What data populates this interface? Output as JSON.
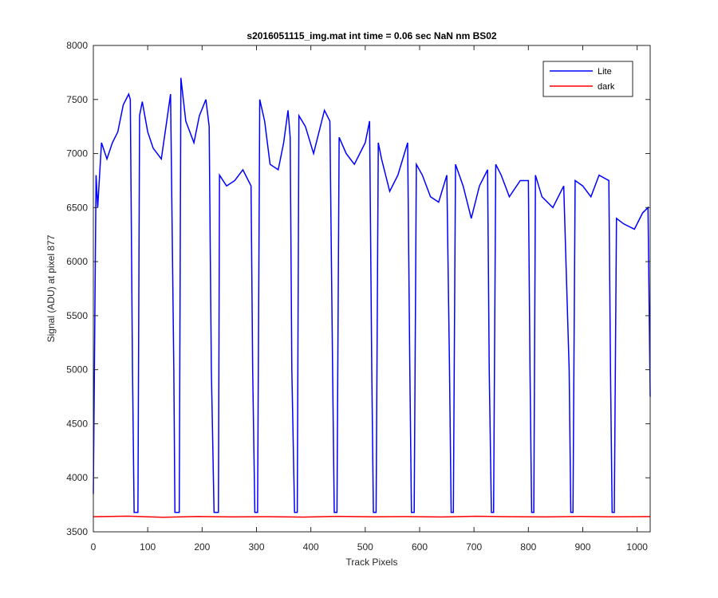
{
  "chart_data": {
    "type": "line",
    "title": "s2016051115_img.mat int time = 0.06 sec  NaN nm BS02",
    "xlabel": "Track Pixels",
    "ylabel": "Signal (ADU) at pixel 877",
    "xlim": [
      0,
      1024
    ],
    "ylim": [
      3500,
      8000
    ],
    "xticks": [
      0,
      100,
      200,
      300,
      400,
      500,
      600,
      700,
      800,
      900,
      1000
    ],
    "yticks": [
      3500,
      4000,
      4500,
      5000,
      5500,
      6000,
      6500,
      7000,
      7500,
      8000
    ],
    "legend": "upper right",
    "series": [
      {
        "name": "Lite",
        "color": "#0000ff",
        "x": [
          0,
          5,
          8,
          15,
          25,
          35,
          45,
          55,
          65,
          68,
          72,
          75,
          82,
          85,
          90,
          100,
          110,
          125,
          135,
          142,
          148,
          150,
          158,
          161,
          170,
          185,
          195,
          207,
          213,
          217,
          222,
          230,
          232,
          245,
          260,
          275,
          290,
          293,
          297,
          302,
          306,
          315,
          325,
          340,
          350,
          358,
          362,
          365,
          370,
          375,
          378,
          390,
          405,
          425,
          435,
          440,
          443,
          448,
          452,
          465,
          480,
          500,
          508,
          512,
          515,
          520,
          524,
          530,
          545,
          560,
          578,
          582,
          585,
          590,
          594,
          605,
          620,
          635,
          650,
          655,
          658,
          662,
          666,
          680,
          695,
          710,
          725,
          728,
          732,
          736,
          740,
          750,
          765,
          785,
          800,
          803,
          806,
          810,
          813,
          825,
          845,
          865,
          875,
          878,
          882,
          886,
          900,
          915,
          930,
          948,
          951,
          954,
          958,
          962,
          975,
          995,
          1010,
          1020,
          1024
        ],
        "values": [
          3850,
          6800,
          6500,
          7100,
          6950,
          7100,
          7200,
          7450,
          7550,
          7500,
          5000,
          3680,
          3680,
          7350,
          7480,
          7200,
          7050,
          6950,
          7300,
          7550,
          5000,
          3680,
          3680,
          7700,
          7300,
          7100,
          7350,
          7500,
          7250,
          5000,
          3680,
          3680,
          6800,
          6700,
          6750,
          6850,
          6700,
          5000,
          3680,
          3680,
          7500,
          7300,
          6900,
          6850,
          7100,
          7400,
          7150,
          5000,
          3680,
          3680,
          7350,
          7250,
          7000,
          7400,
          7300,
          5000,
          3680,
          3680,
          7150,
          7000,
          6900,
          7100,
          7300,
          5000,
          3680,
          3680,
          7100,
          6950,
          6650,
          6800,
          7100,
          5000,
          3680,
          3680,
          6900,
          6800,
          6600,
          6550,
          6800,
          5000,
          3680,
          3680,
          6900,
          6700,
          6400,
          6700,
          6850,
          5000,
          3680,
          3680,
          6900,
          6800,
          6600,
          6750,
          6750,
          5000,
          3680,
          3680,
          6800,
          6600,
          6500,
          6700,
          5000,
          3680,
          3680,
          6750,
          6700,
          6600,
          6800,
          6750,
          5000,
          3680,
          3680,
          6400,
          6350,
          6300,
          6450,
          6500,
          4750
        ]
      },
      {
        "name": "dark",
        "color": "#ff0000",
        "x": [
          0,
          64,
          128,
          192,
          256,
          320,
          384,
          448,
          512,
          576,
          640,
          704,
          768,
          832,
          896,
          960,
          1024
        ],
        "values": [
          3640,
          3645,
          3635,
          3642,
          3638,
          3640,
          3636,
          3643,
          3639,
          3641,
          3637,
          3644,
          3640,
          3638,
          3642,
          3639,
          3641
        ]
      }
    ]
  }
}
